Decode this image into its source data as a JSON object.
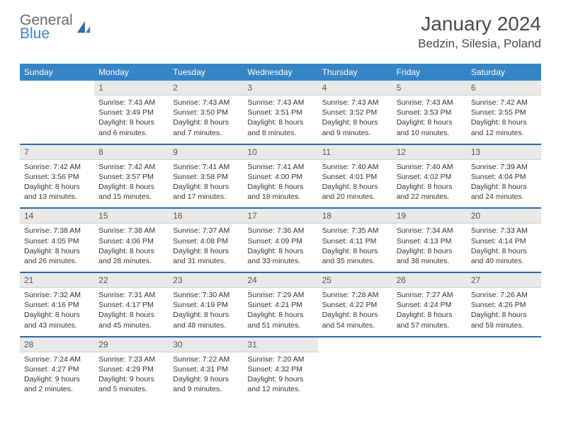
{
  "logo": {
    "general": "General",
    "blue": "Blue"
  },
  "colors": {
    "header_bg": "#3585c6",
    "header_text": "#ffffff",
    "daynum_bg": "#e9e9e9",
    "separator": "#2e6ca5",
    "logo_gray": "#6b6b6b",
    "logo_blue": "#3585c6",
    "body_text": "#333333",
    "title_text": "#4a4a4a"
  },
  "title": "January 2024",
  "location": "Bedzin, Silesia, Poland",
  "day_headers": [
    "Sunday",
    "Monday",
    "Tuesday",
    "Wednesday",
    "Thursday",
    "Friday",
    "Saturday"
  ],
  "weeks": [
    [
      {
        "n": "",
        "lines": []
      },
      {
        "n": "1",
        "lines": [
          "Sunrise: 7:43 AM",
          "Sunset: 3:49 PM",
          "Daylight: 8 hours",
          "and 6 minutes."
        ]
      },
      {
        "n": "2",
        "lines": [
          "Sunrise: 7:43 AM",
          "Sunset: 3:50 PM",
          "Daylight: 8 hours",
          "and 7 minutes."
        ]
      },
      {
        "n": "3",
        "lines": [
          "Sunrise: 7:43 AM",
          "Sunset: 3:51 PM",
          "Daylight: 8 hours",
          "and 8 minutes."
        ]
      },
      {
        "n": "4",
        "lines": [
          "Sunrise: 7:43 AM",
          "Sunset: 3:52 PM",
          "Daylight: 8 hours",
          "and 9 minutes."
        ]
      },
      {
        "n": "5",
        "lines": [
          "Sunrise: 7:43 AM",
          "Sunset: 3:53 PM",
          "Daylight: 8 hours",
          "and 10 minutes."
        ]
      },
      {
        "n": "6",
        "lines": [
          "Sunrise: 7:42 AM",
          "Sunset: 3:55 PM",
          "Daylight: 8 hours",
          "and 12 minutes."
        ]
      }
    ],
    [
      {
        "n": "7",
        "lines": [
          "Sunrise: 7:42 AM",
          "Sunset: 3:56 PM",
          "Daylight: 8 hours",
          "and 13 minutes."
        ]
      },
      {
        "n": "8",
        "lines": [
          "Sunrise: 7:42 AM",
          "Sunset: 3:57 PM",
          "Daylight: 8 hours",
          "and 15 minutes."
        ]
      },
      {
        "n": "9",
        "lines": [
          "Sunrise: 7:41 AM",
          "Sunset: 3:58 PM",
          "Daylight: 8 hours",
          "and 17 minutes."
        ]
      },
      {
        "n": "10",
        "lines": [
          "Sunrise: 7:41 AM",
          "Sunset: 4:00 PM",
          "Daylight: 8 hours",
          "and 18 minutes."
        ]
      },
      {
        "n": "11",
        "lines": [
          "Sunrise: 7:40 AM",
          "Sunset: 4:01 PM",
          "Daylight: 8 hours",
          "and 20 minutes."
        ]
      },
      {
        "n": "12",
        "lines": [
          "Sunrise: 7:40 AM",
          "Sunset: 4:02 PM",
          "Daylight: 8 hours",
          "and 22 minutes."
        ]
      },
      {
        "n": "13",
        "lines": [
          "Sunrise: 7:39 AM",
          "Sunset: 4:04 PM",
          "Daylight: 8 hours",
          "and 24 minutes."
        ]
      }
    ],
    [
      {
        "n": "14",
        "lines": [
          "Sunrise: 7:38 AM",
          "Sunset: 4:05 PM",
          "Daylight: 8 hours",
          "and 26 minutes."
        ]
      },
      {
        "n": "15",
        "lines": [
          "Sunrise: 7:38 AM",
          "Sunset: 4:06 PM",
          "Daylight: 8 hours",
          "and 28 minutes."
        ]
      },
      {
        "n": "16",
        "lines": [
          "Sunrise: 7:37 AM",
          "Sunset: 4:08 PM",
          "Daylight: 8 hours",
          "and 31 minutes."
        ]
      },
      {
        "n": "17",
        "lines": [
          "Sunrise: 7:36 AM",
          "Sunset: 4:09 PM",
          "Daylight: 8 hours",
          "and 33 minutes."
        ]
      },
      {
        "n": "18",
        "lines": [
          "Sunrise: 7:35 AM",
          "Sunset: 4:11 PM",
          "Daylight: 8 hours",
          "and 35 minutes."
        ]
      },
      {
        "n": "19",
        "lines": [
          "Sunrise: 7:34 AM",
          "Sunset: 4:13 PM",
          "Daylight: 8 hours",
          "and 38 minutes."
        ]
      },
      {
        "n": "20",
        "lines": [
          "Sunrise: 7:33 AM",
          "Sunset: 4:14 PM",
          "Daylight: 8 hours",
          "and 40 minutes."
        ]
      }
    ],
    [
      {
        "n": "21",
        "lines": [
          "Sunrise: 7:32 AM",
          "Sunset: 4:16 PM",
          "Daylight: 8 hours",
          "and 43 minutes."
        ]
      },
      {
        "n": "22",
        "lines": [
          "Sunrise: 7:31 AM",
          "Sunset: 4:17 PM",
          "Daylight: 8 hours",
          "and 45 minutes."
        ]
      },
      {
        "n": "23",
        "lines": [
          "Sunrise: 7:30 AM",
          "Sunset: 4:19 PM",
          "Daylight: 8 hours",
          "and 48 minutes."
        ]
      },
      {
        "n": "24",
        "lines": [
          "Sunrise: 7:29 AM",
          "Sunset: 4:21 PM",
          "Daylight: 8 hours",
          "and 51 minutes."
        ]
      },
      {
        "n": "25",
        "lines": [
          "Sunrise: 7:28 AM",
          "Sunset: 4:22 PM",
          "Daylight: 8 hours",
          "and 54 minutes."
        ]
      },
      {
        "n": "26",
        "lines": [
          "Sunrise: 7:27 AM",
          "Sunset: 4:24 PM",
          "Daylight: 8 hours",
          "and 57 minutes."
        ]
      },
      {
        "n": "27",
        "lines": [
          "Sunrise: 7:26 AM",
          "Sunset: 4:26 PM",
          "Daylight: 8 hours",
          "and 59 minutes."
        ]
      }
    ],
    [
      {
        "n": "28",
        "lines": [
          "Sunrise: 7:24 AM",
          "Sunset: 4:27 PM",
          "Daylight: 9 hours",
          "and 2 minutes."
        ]
      },
      {
        "n": "29",
        "lines": [
          "Sunrise: 7:23 AM",
          "Sunset: 4:29 PM",
          "Daylight: 9 hours",
          "and 5 minutes."
        ]
      },
      {
        "n": "30",
        "lines": [
          "Sunrise: 7:22 AM",
          "Sunset: 4:31 PM",
          "Daylight: 9 hours",
          "and 9 minutes."
        ]
      },
      {
        "n": "31",
        "lines": [
          "Sunrise: 7:20 AM",
          "Sunset: 4:32 PM",
          "Daylight: 9 hours",
          "and 12 minutes."
        ]
      },
      {
        "n": "",
        "lines": []
      },
      {
        "n": "",
        "lines": []
      },
      {
        "n": "",
        "lines": []
      }
    ]
  ]
}
